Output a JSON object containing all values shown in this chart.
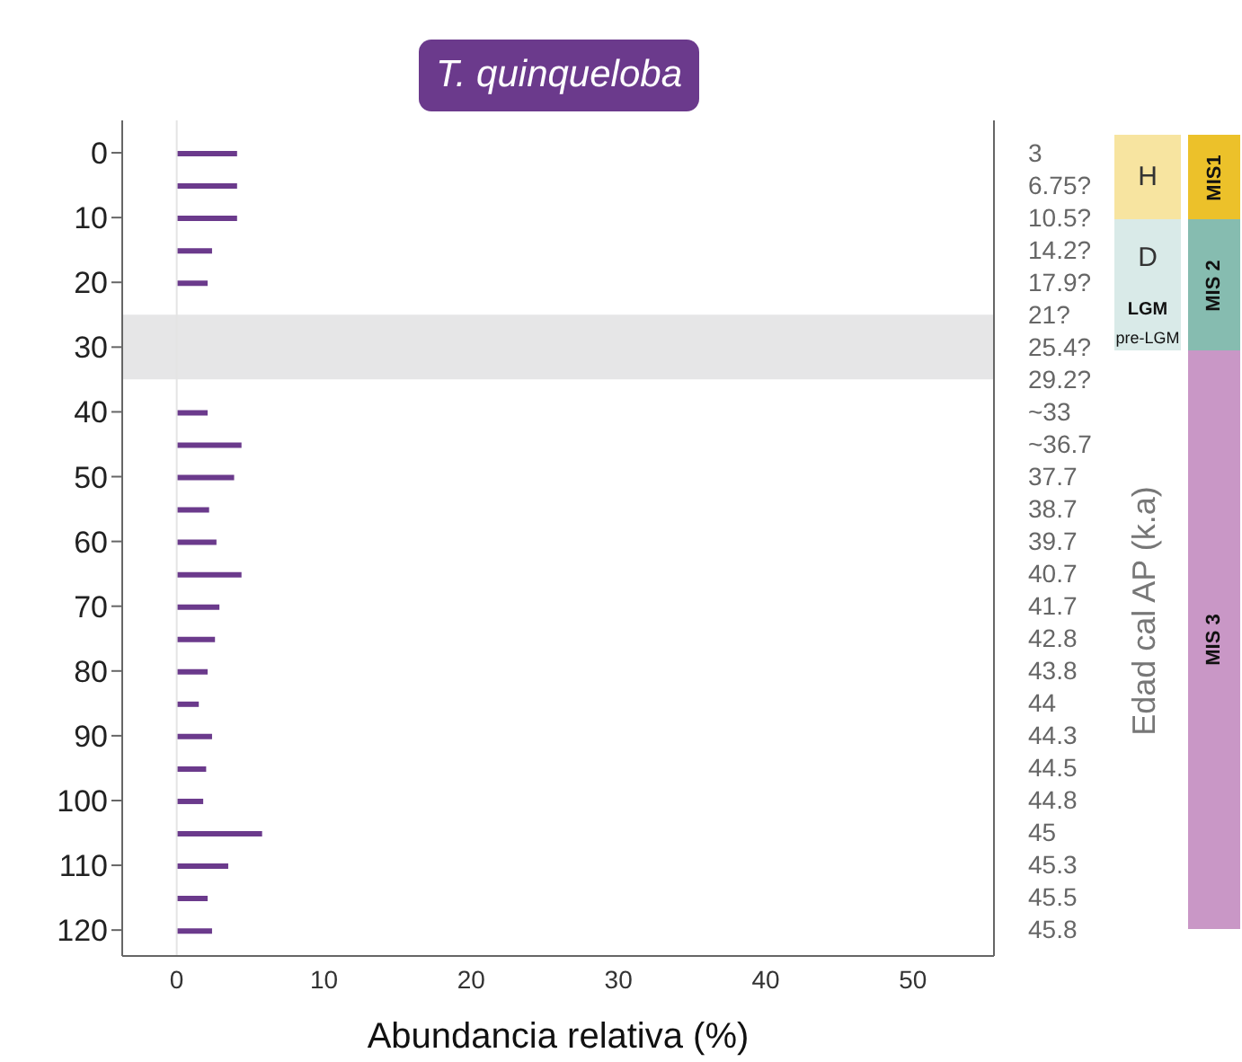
{
  "chart_data": [
    {
      "type": "bar",
      "orientation": "horizontal",
      "title": "T. quinqueloba",
      "xlabel": "Abundancia relativa (%)",
      "y2label": "Edad cal AP (k.a)",
      "x": [
        0,
        5,
        10,
        15,
        20,
        40,
        45,
        50,
        55,
        60,
        65,
        70,
        75,
        80,
        85,
        90,
        95,
        100,
        105,
        110,
        115,
        120
      ],
      "values": [
        4.1,
        4.1,
        4.1,
        2.4,
        2.1,
        2.1,
        4.4,
        3.9,
        2.2,
        2.7,
        4.4,
        2.9,
        2.6,
        2.1,
        1.5,
        2.4,
        2.0,
        1.8,
        5.8,
        3.5,
        2.1,
        2.4
      ],
      "color": "#6b3a8c",
      "xlim": [
        -3.7,
        55.5
      ],
      "xticks": [
        0,
        10,
        20,
        30,
        40,
        50
      ],
      "ylim": [
        124,
        -5
      ],
      "yticks": [
        0,
        10,
        20,
        30,
        40,
        50,
        60,
        70,
        80,
        90,
        100,
        110,
        120
      ],
      "annotations": [
        "3",
        "6.75?",
        "10.5?",
        "14.2?",
        "17.9?",
        "21?",
        "25.4?",
        "29.2?",
        "~33",
        "~36.7",
        "37.7",
        "38.7",
        "39.7",
        "40.7",
        "41.7",
        "42.8",
        "43.8",
        "44",
        "44.3",
        "44.5",
        "44.8",
        "45",
        "45.3",
        "45.5",
        "45.8"
      ],
      "ref_lines": [
        {
          "axis": "x",
          "value": 0,
          "label": null,
          "color": "#e4e4e4"
        }
      ],
      "bands": [
        {
          "axis": "y",
          "from": 25,
          "to": 35,
          "label": null,
          "color": "#e6e6e7"
        }
      ],
      "grid": false,
      "legend": false
    },
    {
      "type": "other",
      "annotations": [
        "H",
        "D",
        "LGM",
        "pre-LGM",
        "MIS1",
        "MIS 2",
        "MIS 3"
      ],
      "colors": [
        "#f7e4a0",
        "#d9eae8",
        "#d9eae8",
        "#d9eae8",
        "#ecc12a",
        "#86bcb0",
        "#c997c6"
      ]
    }
  ]
}
